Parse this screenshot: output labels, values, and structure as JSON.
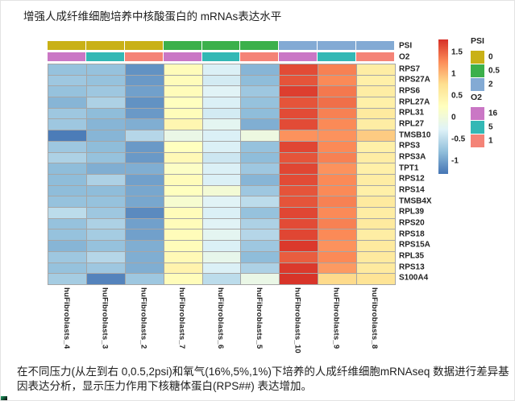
{
  "title": "增强人成纤维细胞培养中核酸蛋白的 mRNAs表达水平",
  "caption": "在不同压力(从左到右 0,0.5,2psi)和氧气(16%,5%,1%)下培养的人成纤维细胞mRNAseq 数据进行差异基因表达分析，显示压力作用下核糖体蛋白(RPS##) 表达增加。",
  "chart_data": {
    "type": "heatmap",
    "columns": [
      "huFibroblasts_4",
      "huFibroblasts_3",
      "huFibroblasts_2",
      "huFibroblasts_7",
      "huFibroblasts_6",
      "huFibroblasts_5",
      "huFibroblasts_10",
      "huFibroblasts_9",
      "huFibroblasts_8"
    ],
    "rows": [
      "RPS7",
      "RPS27A",
      "RPS6",
      "RPL27A",
      "RPL31",
      "RPL27",
      "TMSB10",
      "RPS3",
      "RPS3A",
      "TPT1",
      "RPS12",
      "RPS14",
      "TMSB4X",
      "RPL39",
      "RPS20",
      "RPS18",
      "RPS15A",
      "RPL35",
      "RPS13",
      "S100A4"
    ],
    "values": [
      [
        -0.75,
        -0.75,
        -1.1,
        0.3,
        -0.3,
        -0.85,
        1.65,
        1.35,
        0.55
      ],
      [
        -0.7,
        -0.75,
        -1.05,
        0.3,
        -0.35,
        -0.8,
        1.6,
        1.3,
        0.5
      ],
      [
        -0.75,
        -0.7,
        -1.0,
        0.3,
        -0.25,
        -0.7,
        1.72,
        1.4,
        0.55
      ],
      [
        -0.85,
        -0.6,
        -1.1,
        0.25,
        -0.3,
        -0.75,
        1.6,
        1.45,
        0.5
      ],
      [
        -0.7,
        -0.8,
        -1.05,
        0.3,
        -0.35,
        -0.8,
        1.65,
        1.35,
        0.6
      ],
      [
        -0.7,
        -0.85,
        -0.9,
        0.4,
        -0.2,
        -0.9,
        1.65,
        1.3,
        0.55
      ],
      [
        -1.25,
        -0.85,
        -0.55,
        -0.1,
        -0.3,
        -0.05,
        1.25,
        1.25,
        0.9
      ],
      [
        -0.7,
        -0.8,
        -1.05,
        0.25,
        -0.3,
        -0.75,
        1.68,
        1.3,
        0.5
      ],
      [
        -0.6,
        -0.75,
        -1.05,
        0.35,
        -0.4,
        -0.8,
        1.6,
        1.35,
        0.55
      ],
      [
        -0.8,
        -0.9,
        -0.9,
        0.2,
        -0.3,
        -0.7,
        1.68,
        1.25,
        0.5
      ],
      [
        -0.8,
        -0.6,
        -1.0,
        0.3,
        -0.3,
        -0.85,
        1.65,
        1.3,
        0.55
      ],
      [
        -0.8,
        -0.8,
        -0.95,
        0.25,
        0.05,
        -0.7,
        1.6,
        1.3,
        0.5
      ],
      [
        -0.75,
        -0.75,
        -0.95,
        0.1,
        -0.25,
        -0.5,
        1.6,
        1.35,
        0.6
      ],
      [
        -0.5,
        -0.7,
        -1.15,
        0.3,
        -0.3,
        -0.75,
        1.68,
        1.3,
        0.55
      ],
      [
        -0.75,
        -0.6,
        -1.0,
        0.3,
        -0.25,
        -0.6,
        1.65,
        1.35,
        0.6
      ],
      [
        -0.75,
        -0.65,
        -1.0,
        0.3,
        -0.2,
        -0.55,
        1.68,
        1.3,
        0.55
      ],
      [
        -0.85,
        -0.75,
        -0.9,
        0.3,
        -0.3,
        -0.7,
        1.75,
        1.25,
        0.6
      ],
      [
        -0.7,
        -0.55,
        -0.9,
        0.35,
        -0.15,
        -0.8,
        1.55,
        1.3,
        0.6
      ],
      [
        -0.75,
        -0.7,
        -0.9,
        0.45,
        -0.3,
        -0.6,
        1.75,
        1.2,
        0.6
      ],
      [
        -0.65,
        -1.2,
        -0.7,
        0.3,
        -0.5,
        -0.1,
        1.78,
        0.8,
        0.7
      ]
    ],
    "scale": {
      "domain": [
        -1.3,
        1.8
      ],
      "colormap": [
        "#4575b4",
        "#91bfdb",
        "#e0f3f8",
        "#ffffbf",
        "#fee090",
        "#fc8d59",
        "#d73027"
      ],
      "legend_ticks": [
        1.5,
        1,
        0.5,
        0,
        -0.5,
        -1
      ]
    },
    "annotations": {
      "psi": {
        "label": "PSI",
        "values": [
          "0",
          "0",
          "0",
          "0.5",
          "0.5",
          "0.5",
          "2",
          "2",
          "2"
        ],
        "colors": {
          "0": "#c9b117",
          "0.5": "#3cb04b",
          "2": "#83aad4"
        }
      },
      "o2": {
        "label": "O2",
        "values": [
          "16",
          "5",
          "1",
          "16",
          "5",
          "1",
          "16",
          "5",
          "1"
        ],
        "colors": {
          "16": "#ca77c5",
          "5": "#33b8b5",
          "1": "#f48377"
        }
      }
    },
    "legends": {
      "psi": {
        "title": "PSI",
        "entries": [
          {
            "label": "0",
            "color": "#c9b117"
          },
          {
            "label": "0.5",
            "color": "#3cb04b"
          },
          {
            "label": "2",
            "color": "#83aad4"
          }
        ]
      },
      "o2": {
        "title": "O2",
        "entries": [
          {
            "label": "16",
            "color": "#ca77c5"
          },
          {
            "label": "5",
            "color": "#33b8b5"
          },
          {
            "label": "1",
            "color": "#f48377"
          }
        ]
      }
    }
  }
}
